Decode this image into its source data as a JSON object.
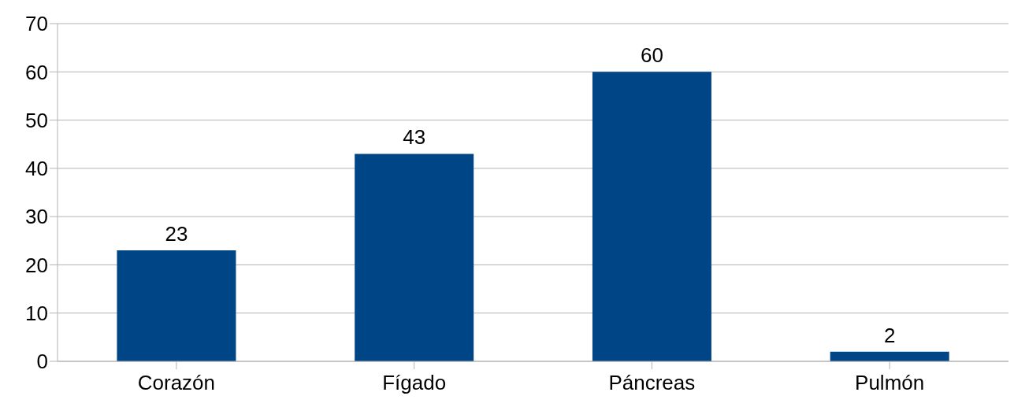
{
  "chart_data": {
    "type": "bar",
    "categories": [
      "Corazón",
      "Fígado",
      "Páncreas",
      "Pulmón"
    ],
    "values": [
      23,
      43,
      60,
      2
    ],
    "color": "#004586",
    "ylim": [
      0,
      70
    ],
    "yticks": [
      0,
      10,
      20,
      30,
      40,
      50,
      60,
      70
    ],
    "grid": "y",
    "data_labels": true
  }
}
